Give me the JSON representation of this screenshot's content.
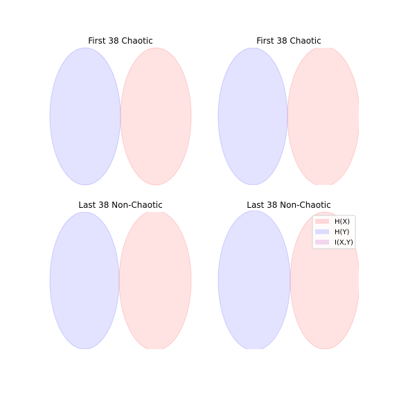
{
  "figure": {
    "legend": {
      "placement": "upper right of bottom-right panel",
      "entries": [
        {
          "label": "H(X)",
          "color": "#ffc0c4"
        },
        {
          "label": "H(Y)",
          "color": "#c8c8ff"
        },
        {
          "label": "I(X,Y)",
          "color": "#f0c8e8"
        }
      ]
    }
  },
  "chart_data": [
    {
      "type": "venn",
      "title": "First 38 Chaotic",
      "sets": [
        {
          "name": "H(Y)",
          "color": "#8080ff",
          "alpha": 0.22
        },
        {
          "name": "H(X)",
          "color": "#ff8080",
          "alpha": 0.22
        }
      ],
      "overlap": 0
    },
    {
      "type": "venn",
      "title": "First 38 Chaotic",
      "sets": [
        {
          "name": "H(Y)",
          "color": "#8080ff",
          "alpha": 0.22
        },
        {
          "name": "H(X)",
          "color": "#ff8080",
          "alpha": 0.22
        }
      ],
      "overlap": 0
    },
    {
      "type": "venn",
      "title": "Last 38 Non-Chaotic",
      "sets": [
        {
          "name": "H(Y)",
          "color": "#8080ff",
          "alpha": 0.22
        },
        {
          "name": "H(X)",
          "color": "#ff8080",
          "alpha": 0.22
        }
      ],
      "overlap": 0
    },
    {
      "type": "venn",
      "title": "Last 38 Non-Chaotic",
      "sets": [
        {
          "name": "H(Y)",
          "color": "#8080ff",
          "alpha": 0.22
        },
        {
          "name": "H(X)",
          "color": "#ff8080",
          "alpha": 0.22
        }
      ],
      "overlap": 0
    }
  ]
}
